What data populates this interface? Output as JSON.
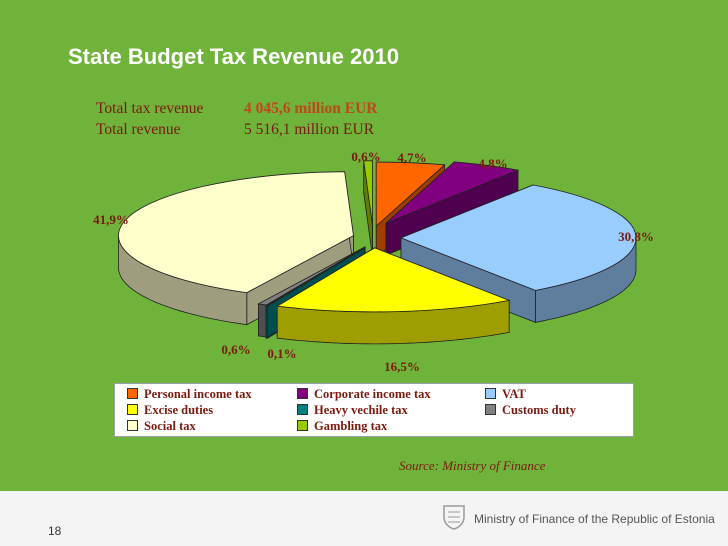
{
  "slide": {
    "title": "State Budget Tax Revenue 2010",
    "page_number": "18",
    "source": "Source: Ministry of Finance",
    "ministry": "Ministry of Finance of the Republic of Estonia"
  },
  "summary": {
    "tax_label": "Total tax revenue",
    "tax_value": "4 045,6 million EUR",
    "total_label": "Total revenue",
    "total_value": "5 516,1 million EUR"
  },
  "chart_data": {
    "type": "pie",
    "title": "State Budget Tax Revenue 2010",
    "legend_position": "bottom",
    "slices": [
      {
        "name": "Personal income tax",
        "value": 4.7,
        "label": "4,7%",
        "color": "#ff6600"
      },
      {
        "name": "Corporate income tax",
        "value": 4.8,
        "label": "4,8%",
        "color": "#800080"
      },
      {
        "name": "VAT",
        "value": 30.8,
        "label": "30,8%",
        "color": "#99ccff"
      },
      {
        "name": "Excise duties",
        "value": 16.5,
        "label": "16,5%",
        "color": "#ffff00"
      },
      {
        "name": "Heavy vechile tax",
        "value": 0.1,
        "label": "0,1%",
        "color": "#008080"
      },
      {
        "name": "Customs duty",
        "value": 0.6,
        "label": "0,6%",
        "color": "#808080"
      },
      {
        "name": "Social tax",
        "value": 41.9,
        "label": "41,9%",
        "color": "#ffffcc"
      },
      {
        "name": "Gambling tax",
        "value": 0.6,
        "label": "0,6%",
        "color": "#99cc00"
      }
    ]
  }
}
